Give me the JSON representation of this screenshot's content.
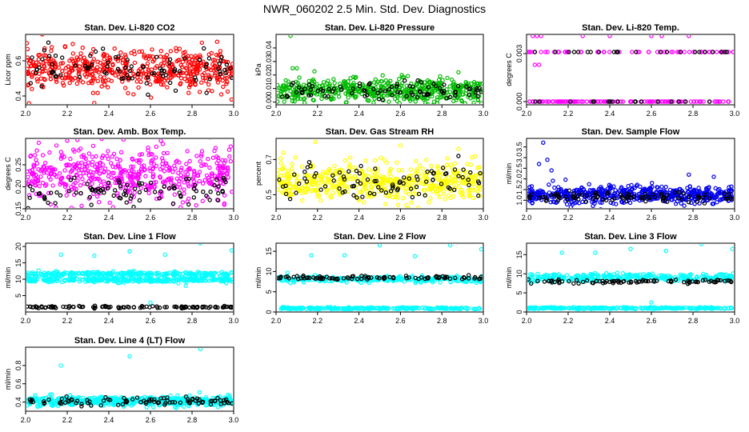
{
  "page": {
    "title": "NWR_060202  2.5 Min. Std. Dev. Diagnostics"
  },
  "chart_data": [
    {
      "id": "co2",
      "type": "scatter",
      "title": "Stan. Dev. Li-820 CO2",
      "xlabel": "",
      "ylabel": "Licor ppm",
      "xlim": [
        2.0,
        3.0
      ],
      "ylim": [
        0.35,
        0.75
      ],
      "xticks": [
        "2.0",
        "2.2",
        "2.4",
        "2.6",
        "2.8",
        "3.0"
      ],
      "yticks": [
        0.4,
        0.6
      ],
      "ytick_labels": [
        "0.4",
        "0.6"
      ],
      "grid": false,
      "series": [
        {
          "color": "#ff0000",
          "n": 520,
          "center": 0.55,
          "spread": 0.055,
          "outliers": [
            [
              2.08,
              0.75
            ],
            [
              2.33,
              0.36
            ],
            [
              2.99,
              0.38
            ],
            [
              2.03,
              0.44
            ]
          ]
        },
        {
          "color": "#000000",
          "n": 90,
          "center": 0.55,
          "spread": 0.05,
          "outliers": [
            [
              2.09,
              0.66
            ]
          ]
        }
      ]
    },
    {
      "id": "pressure",
      "type": "scatter",
      "title": "Stan. Dev. Li-820 Pressure",
      "xlabel": "",
      "ylabel": "kPa",
      "xlim": [
        2.0,
        3.0
      ],
      "ylim": [
        -0.002,
        0.05
      ],
      "xticks": [
        "2.0",
        "2.2",
        "2.4",
        "2.6",
        "2.8",
        "3.0"
      ],
      "yticks": [
        0.0,
        0.01,
        0.02,
        0.03,
        0.04
      ],
      "ytick_labels": [
        "0.00",
        "0.01",
        "0.02",
        "0.03",
        "0.04"
      ],
      "grid": false,
      "series": [
        {
          "color": "#00bb00",
          "n": 520,
          "center": 0.0085,
          "spread": 0.0045,
          "outliers": [
            [
              2.07,
              0.049
            ],
            [
              2.08,
              0.025
            ],
            [
              2.1,
              0.025
            ],
            [
              2.88,
              0.022
            ]
          ]
        },
        {
          "color": "#000000",
          "n": 90,
          "center": 0.008,
          "spread": 0.0035,
          "outliers": []
        }
      ]
    },
    {
      "id": "temp",
      "type": "scatter",
      "title": "Stan. Dev. Li-820 Temp.",
      "xlabel": "",
      "ylabel": "degrees C",
      "xlim": [
        2.0,
        3.0
      ],
      "ylim": [
        -0.0002,
        0.0042
      ],
      "xticks": [
        "2.0",
        "2.2",
        "2.4",
        "2.6",
        "2.8",
        "3.0"
      ],
      "yticks": [
        0.0,
        0.003
      ],
      "ytick_labels": [
        "0.000",
        "0.003"
      ],
      "grid": false,
      "series": [
        {
          "color": "#ff00ff",
          "levels": [
            0.0,
            0.0
          ],
          "n": 120,
          "outliers": []
        },
        {
          "color": "#ff00ff",
          "levels": [
            0.0031,
            0.0031
          ],
          "n": 60,
          "outliers": [
            [
              2.03,
              0.0041
            ],
            [
              2.05,
              0.0041
            ],
            [
              2.07,
              0.0041
            ],
            [
              2.27,
              0.0041
            ],
            [
              2.4,
              0.0041
            ],
            [
              2.6,
              0.0041
            ],
            [
              2.65,
              0.0041
            ],
            [
              2.78,
              0.0041
            ],
            [
              2.04,
              0.0023
            ],
            [
              2.06,
              0.0023
            ]
          ]
        },
        {
          "color": "#000000",
          "levels": [
            0.0,
            0.0031
          ],
          "n": 40,
          "outliers": []
        }
      ]
    },
    {
      "id": "ambbox",
      "type": "scatter",
      "title": "Stan. Dev. Amb. Box Temp.",
      "xlabel": "",
      "ylabel": "degrees C",
      "xlim": [
        2.0,
        3.0
      ],
      "ylim": [
        0.15,
        0.31
      ],
      "xticks": [
        "2.0",
        "2.2",
        "2.4",
        "2.6",
        "2.8",
        "3.0"
      ],
      "yticks": [
        0.15,
        0.2,
        0.25
      ],
      "ytick_labels": [
        "0.15",
        "0.20",
        "0.25"
      ],
      "grid": false,
      "series": [
        {
          "color": "#ff00ff",
          "n": 520,
          "center": 0.225,
          "spread": 0.03,
          "outliers": [
            [
              2.2,
              0.305
            ],
            [
              2.65,
              0.305
            ],
            [
              2.12,
              0.16
            ],
            [
              2.82,
              0.158
            ]
          ]
        },
        {
          "color": "#000000",
          "n": 90,
          "center": 0.19,
          "spread": 0.015,
          "outliers": []
        }
      ]
    },
    {
      "id": "rh",
      "type": "scatter",
      "title": "Stan. Dev. Gas Stream RH",
      "xlabel": "",
      "ylabel": "percent",
      "xlim": [
        2.0,
        3.0
      ],
      "ylim": [
        0.42,
        0.82
      ],
      "xticks": [
        "2.0",
        "2.2",
        "2.4",
        "2.6",
        "2.8",
        "3.0"
      ],
      "yticks": [
        0.5,
        0.7
      ],
      "ytick_labels": [
        "0.5",
        "0.7"
      ],
      "grid": false,
      "series": [
        {
          "color": "#ffff00",
          "n": 520,
          "center": 0.575,
          "spread": 0.055,
          "outliers": [
            [
              2.19,
              0.8
            ],
            [
              2.88,
              0.76
            ],
            [
              2.6,
              0.78
            ]
          ]
        },
        {
          "color": "#000000",
          "n": 90,
          "center": 0.57,
          "spread": 0.05,
          "outliers": [
            [
              2.88,
              0.72
            ]
          ]
        }
      ]
    },
    {
      "id": "sampleflow",
      "type": "scatter",
      "title": "Stan. Dev. Sample Flow",
      "xlabel": "",
      "ylabel": "ml/min",
      "xlim": [
        2.0,
        3.0
      ],
      "ylim": [
        0.6,
        3.9
      ],
      "xticks": [
        "2.0",
        "2.2",
        "2.4",
        "2.6",
        "2.8",
        "3.0"
      ],
      "yticks": [
        1.0,
        1.5,
        2.0,
        2.5,
        3.0,
        3.5
      ],
      "ytick_labels": [
        "1.0",
        "1.5",
        "2.0",
        "2.5",
        "3.0",
        "3.5"
      ],
      "grid": false,
      "series": [
        {
          "color": "#0000ee",
          "n": 560,
          "center": 1.25,
          "spread": 0.2,
          "outliers": [
            [
              2.08,
              3.7
            ],
            [
              2.06,
              2.7
            ],
            [
              2.1,
              2.9
            ],
            [
              2.12,
              2.4
            ],
            [
              2.78,
              2.2
            ],
            [
              2.9,
              2.1
            ]
          ]
        },
        {
          "color": "#000000",
          "n": 90,
          "center": 1.15,
          "spread": 0.12,
          "outliers": []
        }
      ]
    },
    {
      "id": "line1",
      "type": "scatter",
      "title": "Stan. Dev. Line 1 Flow",
      "xlabel": "",
      "ylabel": "ml/min",
      "xlim": [
        2.0,
        3.0
      ],
      "ylim": [
        0.0,
        21.0
      ],
      "xticks": [
        "2.0",
        "2.2",
        "2.4",
        "2.6",
        "2.8",
        "3.0"
      ],
      "yticks": [
        5,
        10,
        15,
        20
      ],
      "ytick_labels": [
        "5",
        "10",
        "15",
        "20"
      ],
      "grid": false,
      "series": [
        {
          "color": "#00ffff",
          "levels": [
            9.8,
            11.6
          ],
          "n": 520,
          "jitter": 0.35,
          "outliers": [
            [
              2.17,
              17.5
            ],
            [
              2.33,
              17.2
            ],
            [
              2.5,
              18.5
            ],
            [
              2.67,
              17.5
            ],
            [
              2.84,
              21.0
            ],
            [
              2.99,
              18.8
            ],
            [
              2.77,
              8.0
            ],
            [
              2.6,
              2.8
            ]
          ]
        },
        {
          "color": "#000000",
          "levels": [
            1.5,
            1.5
          ],
          "n": 110,
          "jitter": 0.15,
          "outliers": []
        }
      ]
    },
    {
      "id": "line2",
      "type": "scatter",
      "title": "Stan. Dev. Line 2 Flow",
      "xlabel": "",
      "ylabel": "ml/min",
      "xlim": [
        2.0,
        3.0
      ],
      "ylim": [
        0.0,
        17.0
      ],
      "xticks": [
        "2.0",
        "2.2",
        "2.4",
        "2.6",
        "2.8",
        "3.0"
      ],
      "yticks": [
        0,
        5,
        10,
        15
      ],
      "ytick_labels": [
        "0",
        "5",
        "10",
        "15"
      ],
      "grid": false,
      "series": [
        {
          "color": "#00ffff",
          "levels": [
            8.0,
            8.2
          ],
          "n": 300,
          "jitter": 0.35,
          "outliers": [
            [
              2.17,
              14.0
            ],
            [
              2.33,
              14.0
            ],
            [
              2.5,
              16.5
            ],
            [
              2.67,
              13.8
            ],
            [
              2.84,
              16.5
            ],
            [
              2.99,
              15.5
            ]
          ]
        },
        {
          "color": "#00ffff",
          "levels": [
            0.9,
            0.9
          ],
          "n": 240,
          "jitter": 0.12,
          "outliers": []
        },
        {
          "color": "#000000",
          "levels": [
            8.5,
            8.5
          ],
          "n": 90,
          "jitter": 0.25,
          "outliers": []
        }
      ]
    },
    {
      "id": "line3",
      "type": "scatter",
      "title": "Stan. Dev. Line 3 Flow",
      "xlabel": "",
      "ylabel": "ml/min",
      "xlim": [
        2.0,
        3.0
      ],
      "ylim": [
        0.0,
        18.0
      ],
      "xticks": [
        "2.0",
        "2.2",
        "2.4",
        "2.6",
        "2.8",
        "3.0"
      ],
      "yticks": [
        0,
        5,
        10,
        15
      ],
      "ytick_labels": [
        "0",
        "5",
        "10",
        "15"
      ],
      "grid": false,
      "series": [
        {
          "color": "#00ffff",
          "levels": [
            8.6,
            9.4
          ],
          "n": 300,
          "jitter": 0.35,
          "outliers": [
            [
              2.17,
              15.5
            ],
            [
              2.33,
              15.5
            ],
            [
              2.5,
              16.5
            ],
            [
              2.67,
              16.0
            ],
            [
              2.84,
              17.8
            ],
            [
              2.99,
              16.5
            ],
            [
              2.6,
              2.5
            ]
          ]
        },
        {
          "color": "#00ffff",
          "levels": [
            1.0,
            1.0
          ],
          "n": 240,
          "jitter": 0.12,
          "outliers": []
        },
        {
          "color": "#000000",
          "levels": [
            8.0,
            8.0
          ],
          "n": 90,
          "jitter": 0.25,
          "outliers": []
        }
      ]
    },
    {
      "id": "line4",
      "type": "scatter",
      "title": "Stan. Dev. Line 4 (LT) Flow",
      "xlabel": "",
      "ylabel": "ml/min",
      "xlim": [
        2.0,
        3.0
      ],
      "ylim": [
        0.3,
        1.0
      ],
      "xticks": [
        "2.0",
        "2.2",
        "2.4",
        "2.6",
        "2.8",
        "3.0"
      ],
      "yticks": [
        0.4,
        0.6,
        0.8
      ],
      "ytick_labels": [
        "0.4",
        "0.6",
        "0.8"
      ],
      "grid": false,
      "series": [
        {
          "color": "#00ffff",
          "n": 520,
          "center": 0.41,
          "spread": 0.025,
          "outliers": [
            [
              2.17,
              0.8
            ],
            [
              2.5,
              0.9
            ],
            [
              2.84,
              0.98
            ]
          ]
        },
        {
          "color": "#000000",
          "n": 90,
          "center": 0.41,
          "spread": 0.025,
          "outliers": []
        }
      ]
    }
  ]
}
